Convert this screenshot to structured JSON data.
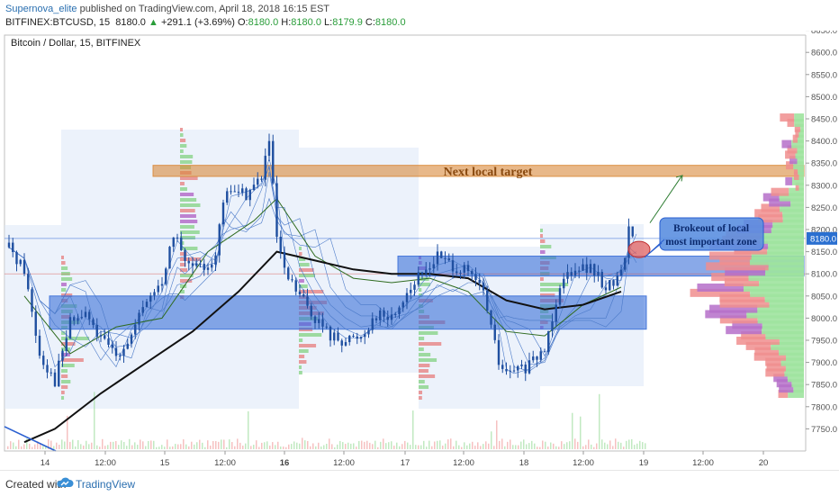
{
  "header": {
    "author": "Supernova_elite",
    "published": "published on TradingView.com, April 18, 2018 16:15 EST",
    "symbol": "BITFINEX:BTCUSD, 15",
    "last": "8180.0",
    "change_arrow": "▲",
    "change": "+291.1 (+3.69%)",
    "o_label": "O:",
    "o_value": "8180.0",
    "h_label": "H:",
    "h_value": "8180.0",
    "l_label": "L:",
    "l_value": "8179.9",
    "c_label": "C:",
    "c_value": "8180.0"
  },
  "footer": {
    "created_with": "Created with",
    "brand": "TradingView",
    "logo_icon": "tradingview-cloud-icon"
  },
  "colors": {
    "up": "#2a9d3a",
    "down": "#d9534f",
    "candle": "#1f4fa0",
    "zone_blue": "#3a6fd8",
    "zone_orange": "#d9893a",
    "annotation_bg": "#5b8fe0",
    "annotation_text": "#0b2a6e",
    "target_text": "#8a4a10",
    "arrow_green": "#2e7d32"
  },
  "chart_data": {
    "type": "candlestick",
    "title": "Bitcoin / Dollar, 15, BITFINEX",
    "last_price_label": "8180.0",
    "ylim": [
      7700,
      8700
    ],
    "y_ticks": [
      "8650.0",
      "8600.0",
      "8550.0",
      "8500.0",
      "8450.0",
      "8400.0",
      "8350.0",
      "8300.0",
      "8250.0",
      "8200.0",
      "8150.0",
      "8100.0",
      "8050.0",
      "8000.0",
      "7950.0",
      "7900.0",
      "7850.0",
      "7800.0",
      "7750.0"
    ],
    "x_ticks": [
      "14",
      "12:00",
      "15",
      "12:00",
      "16",
      "12:00",
      "17",
      "12:00",
      "18",
      "12:00",
      "19",
      "12:00",
      "20"
    ],
    "x_ticks_bold": [
      "16"
    ],
    "annotations": {
      "target_label": "Next local target",
      "breakout_line1": "Brokeout of local",
      "breakout_line2": "most important zone"
    },
    "zones": [
      {
        "name": "next-local-target",
        "low": 8320,
        "high": 8345,
        "from_t": 15,
        "to_t": 100
      },
      {
        "name": "upper-blue-zone",
        "low": 8095,
        "high": 8140,
        "from_t": 40,
        "to_t": 100
      },
      {
        "name": "lower-blue-zone",
        "low": 7975,
        "high": 8050,
        "from_t": 5,
        "to_t": 82
      }
    ],
    "price_path": [
      [
        0,
        8160
      ],
      [
        2,
        8110
      ],
      [
        4,
        7920
      ],
      [
        6,
        7860
      ],
      [
        8,
        7990
      ],
      [
        10,
        8010
      ],
      [
        12,
        7950
      ],
      [
        14,
        7920
      ],
      [
        16,
        7960
      ],
      [
        18,
        8040
      ],
      [
        20,
        8080
      ],
      [
        21,
        8160
      ],
      [
        22,
        8190
      ],
      [
        23,
        8120
      ],
      [
        25,
        8110
      ],
      [
        27,
        8140
      ],
      [
        28,
        8260
      ],
      [
        29,
        8290
      ],
      [
        31,
        8280
      ],
      [
        33,
        8320
      ],
      [
        34,
        8400
      ],
      [
        35,
        8180
      ],
      [
        36,
        8100
      ],
      [
        38,
        8050
      ],
      [
        40,
        8000
      ],
      [
        42,
        7960
      ],
      [
        44,
        7950
      ],
      [
        46,
        7960
      ],
      [
        48,
        8010
      ],
      [
        50,
        8000
      ],
      [
        52,
        8060
      ],
      [
        54,
        8100
      ],
      [
        56,
        8140
      ],
      [
        58,
        8120
      ],
      [
        60,
        8100
      ],
      [
        62,
        8060
      ],
      [
        64,
        7900
      ],
      [
        65,
        7870
      ],
      [
        66,
        7880
      ],
      [
        68,
        7890
      ],
      [
        70,
        7930
      ],
      [
        72,
        8080
      ],
      [
        74,
        8120
      ],
      [
        76,
        8110
      ],
      [
        78,
        8070
      ],
      [
        80,
        8100
      ],
      [
        81,
        8200
      ],
      [
        82,
        8180
      ]
    ],
    "ma_long_path": [
      [
        2,
        7720
      ],
      [
        6,
        7750
      ],
      [
        12,
        7830
      ],
      [
        18,
        7900
      ],
      [
        24,
        7970
      ],
      [
        30,
        8060
      ],
      [
        35,
        8150
      ],
      [
        40,
        8130
      ],
      [
        45,
        8110
      ],
      [
        50,
        8100
      ],
      [
        55,
        8100
      ],
      [
        60,
        8090
      ],
      [
        65,
        8040
      ],
      [
        70,
        8020
      ],
      [
        75,
        8030
      ],
      [
        80,
        8060
      ]
    ],
    "ma_mid_path": [
      [
        2,
        8050
      ],
      [
        8,
        7920
      ],
      [
        14,
        7980
      ],
      [
        20,
        8000
      ],
      [
        26,
        8150
      ],
      [
        32,
        8220
      ],
      [
        35,
        8270
      ],
      [
        40,
        8140
      ],
      [
        45,
        8090
      ],
      [
        50,
        8080
      ],
      [
        55,
        8090
      ],
      [
        60,
        8060
      ],
      [
        65,
        7970
      ],
      [
        70,
        7960
      ],
      [
        75,
        8030
      ],
      [
        80,
        8070
      ]
    ]
  }
}
